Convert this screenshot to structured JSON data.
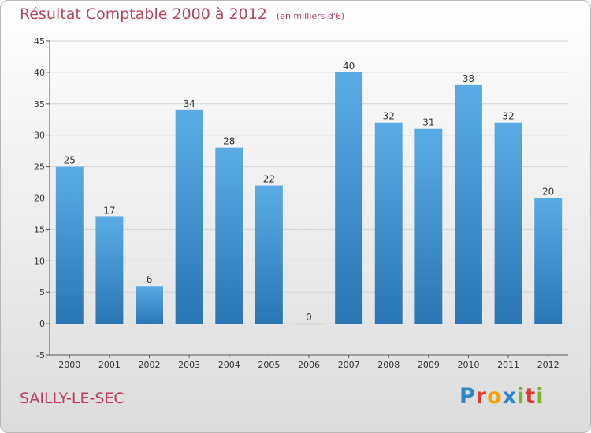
{
  "chart_data": {
    "type": "bar",
    "title": "Résultat Comptable 2000 à 2012",
    "subtitle": "(en milliers d'€)",
    "categories": [
      "2000",
      "2001",
      "2002",
      "2003",
      "2004",
      "2005",
      "2006",
      "2007",
      "2008",
      "2009",
      "2010",
      "2011",
      "2012"
    ],
    "values": [
      25,
      17,
      6,
      34,
      28,
      22,
      0,
      40,
      32,
      31,
      38,
      32,
      20
    ],
    "ylim": [
      -5,
      45
    ],
    "yticks": [
      -5,
      0,
      5,
      10,
      15,
      20,
      25,
      30,
      35,
      40,
      45
    ],
    "grid": true,
    "bar_color_top": "#5aabe5",
    "bar_color_bottom": "#2a76b4"
  },
  "commune": "SAILLY-LE-SEC",
  "logo": {
    "letters": [
      "P",
      "r",
      "o",
      "x",
      "i",
      "t",
      "i"
    ],
    "colors": [
      "#2e86c8",
      "#e23b2e",
      "#f5a300",
      "#2e86c8",
      "#7ab52a",
      "#e23b2e",
      "#7ab52a"
    ]
  }
}
